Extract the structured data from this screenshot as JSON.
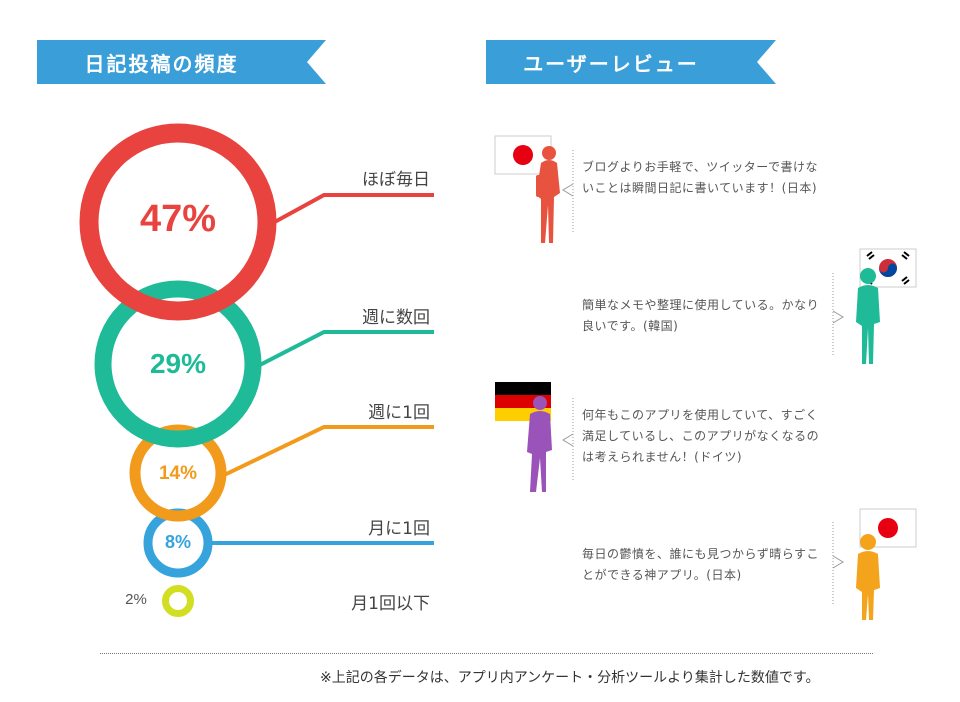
{
  "headers": {
    "frequency_title": "日記投稿の頻度",
    "review_title": "ユーザーレビュー"
  },
  "colors": {
    "banner": "#3a9ed8",
    "daily": "#e8433f",
    "weekly_several": "#1fbb98",
    "weekly_once": "#f29a1b",
    "monthly_once": "#36a3dd",
    "less_monthly": "#d2de21"
  },
  "frequency": [
    {
      "label": "ほぼ毎日",
      "percent": "47%"
    },
    {
      "label": "週に数回",
      "percent": "29%"
    },
    {
      "label": "週に1回",
      "percent": "14%"
    },
    {
      "label": "月に1回",
      "percent": "8%"
    },
    {
      "label": "月1回以下",
      "percent": "2%"
    }
  ],
  "reviews": [
    {
      "text": "ブログよりお手軽で、ツイッターで書けないことは瞬間日記に書いています！(日本)",
      "flag": "japan-flag-icon",
      "person": "person-silhouette-icon"
    },
    {
      "text": "簡単なメモや整理に使用している。かなり良いです。(韓国)",
      "flag": "korea-flag-icon",
      "person": "person-silhouette-icon"
    },
    {
      "text": "何年もこのアプリを使用していて、すごく満足しているし、このアプリがなくなるのは考えられません！(ドイツ)",
      "flag": "germany-flag-icon",
      "person": "person-silhouette-icon"
    },
    {
      "text": "毎日の鬱憤を、誰にも見つからず晴らすことができる神アプリ。(日本)",
      "flag": "japan-flag-icon",
      "person": "person-silhouette-icon"
    }
  ],
  "footnote": "※上記の各データは、アプリ内アンケート・分析ツールより集計した数値です。"
}
